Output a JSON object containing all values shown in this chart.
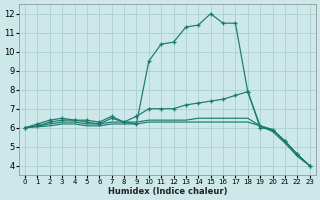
{
  "xlabel": "Humidex (Indice chaleur)",
  "xlim": [
    -0.5,
    23.5
  ],
  "ylim": [
    3.5,
    12.5
  ],
  "xticks": [
    0,
    1,
    2,
    3,
    4,
    5,
    6,
    7,
    8,
    9,
    10,
    11,
    12,
    13,
    14,
    15,
    16,
    17,
    18,
    19,
    20,
    21,
    22,
    23
  ],
  "yticks": [
    4,
    5,
    6,
    7,
    8,
    9,
    10,
    11,
    12
  ],
  "bg_color": "#cce8e8",
  "line_color": "#1a7a6e",
  "grid_color": "#aacfcf",
  "curves": [
    {
      "x": [
        0,
        1,
        2,
        3,
        4,
        5,
        6,
        7,
        8,
        9,
        10,
        11,
        12,
        13,
        14,
        15,
        16,
        17,
        18,
        19,
        20,
        21,
        22,
        23
      ],
      "y": [
        6.0,
        6.2,
        6.4,
        6.5,
        6.4,
        6.4,
        6.3,
        6.6,
        6.3,
        6.2,
        9.5,
        10.4,
        10.5,
        11.3,
        11.4,
        12.0,
        11.5,
        11.5,
        7.9,
        6.0,
        5.9,
        5.3,
        4.6,
        4.0
      ],
      "marker": true
    },
    {
      "x": [
        0,
        1,
        2,
        3,
        4,
        5,
        6,
        7,
        8,
        9,
        10,
        11,
        12,
        13,
        14,
        15,
        16,
        17,
        18,
        19,
        20,
        21,
        22,
        23
      ],
      "y": [
        6.0,
        6.1,
        6.3,
        6.4,
        6.4,
        6.3,
        6.2,
        6.5,
        6.3,
        6.6,
        7.0,
        7.0,
        7.0,
        7.2,
        7.3,
        7.4,
        7.5,
        7.7,
        7.9,
        6.1,
        5.9,
        5.3,
        4.6,
        4.0
      ],
      "marker": true
    },
    {
      "x": [
        0,
        1,
        2,
        3,
        4,
        5,
        6,
        7,
        8,
        9,
        10,
        11,
        12,
        13,
        14,
        15,
        16,
        17,
        18,
        19,
        20,
        21,
        22,
        23
      ],
      "y": [
        6.0,
        6.1,
        6.2,
        6.3,
        6.3,
        6.2,
        6.2,
        6.3,
        6.3,
        6.3,
        6.4,
        6.4,
        6.4,
        6.4,
        6.5,
        6.5,
        6.5,
        6.5,
        6.5,
        6.1,
        5.9,
        5.3,
        4.6,
        4.0
      ],
      "marker": false
    },
    {
      "x": [
        0,
        1,
        2,
        3,
        4,
        5,
        6,
        7,
        8,
        9,
        10,
        11,
        12,
        13,
        14,
        15,
        16,
        17,
        18,
        19,
        20,
        21,
        22,
        23
      ],
      "y": [
        6.0,
        6.05,
        6.1,
        6.2,
        6.2,
        6.1,
        6.1,
        6.2,
        6.2,
        6.2,
        6.3,
        6.3,
        6.3,
        6.3,
        6.3,
        6.3,
        6.3,
        6.3,
        6.3,
        6.1,
        5.8,
        5.2,
        4.5,
        4.0
      ],
      "marker": false
    }
  ]
}
